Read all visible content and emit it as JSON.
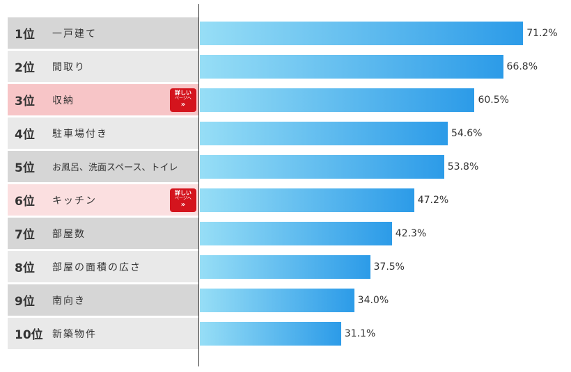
{
  "chart_data": {
    "type": "bar",
    "orientation": "horizontal",
    "categories": [
      "一戸建て",
      "間取り",
      "収納",
      "駐車場付き",
      "お風呂、洗面スペース、トイレ",
      "キッチン",
      "部屋数",
      "部屋の面積の広さ",
      "南向き",
      "新築物件"
    ],
    "ranks": [
      "1位",
      "2位",
      "3位",
      "4位",
      "5位",
      "6位",
      "7位",
      "8位",
      "9位",
      "10位"
    ],
    "values": [
      71.2,
      66.8,
      60.5,
      54.6,
      53.8,
      47.2,
      42.3,
      37.5,
      34.0,
      31.1
    ],
    "value_labels": [
      "71.2%",
      "66.8%",
      "60.5%",
      "54.6%",
      "53.8%",
      "47.2%",
      "42.3%",
      "37.5%",
      "34.0%",
      "31.1%"
    ],
    "highlighted_ranks": [
      3,
      6
    ],
    "grid": false,
    "legend": "none",
    "bar_color_start": "#97def6",
    "bar_color_end": "#2c9be8"
  },
  "detail_button": {
    "line1": "詳しい",
    "line2": "ページへ",
    "arrow": "»"
  },
  "colors": {
    "row_dark": "#d6d6d6",
    "row_light": "#e9e9e9",
    "row_highlight_3": "#f7c5c7",
    "row_highlight_6": "#fbdfe0",
    "button_red": "#d4141d"
  }
}
